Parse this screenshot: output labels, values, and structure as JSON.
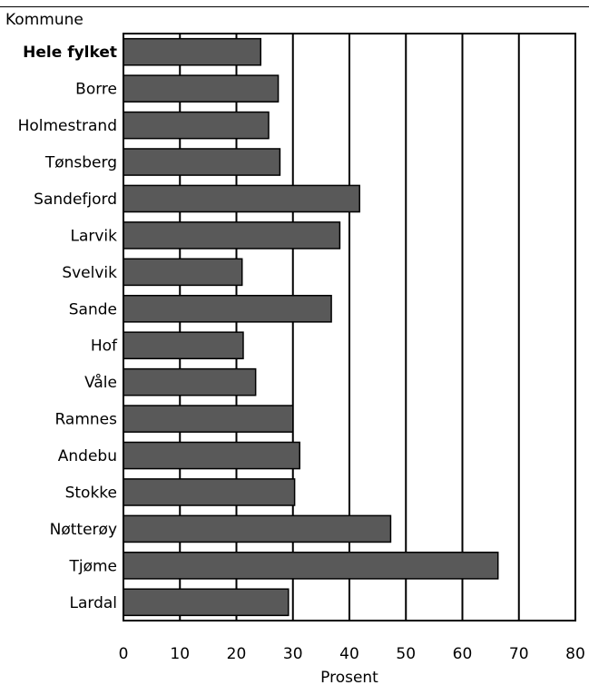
{
  "chart_data": {
    "type": "bar",
    "orientation": "horizontal",
    "title": "",
    "category_axis_label": "Kommune",
    "xlabel": "Prosent",
    "xlim": [
      0,
      80
    ],
    "xticks": [
      0,
      10,
      20,
      30,
      40,
      50,
      60,
      70,
      80
    ],
    "grid": true,
    "bar_color": "#595959",
    "categories": [
      "Hele fylket",
      "Borre",
      "Holmestrand",
      "Tønsberg",
      "Sandefjord",
      "Larvik",
      "Svelvik",
      "Sande",
      "Hof",
      "Våle",
      "Ramnes",
      "Andebu",
      "Stokke",
      "Nøtterøy",
      "Tjøme",
      "Lardal"
    ],
    "highlighted_category": "Hele fylket",
    "values": [
      24.3,
      27.4,
      25.7,
      27.7,
      41.8,
      38.3,
      21.0,
      36.8,
      21.2,
      23.4,
      30.0,
      31.2,
      30.3,
      47.3,
      66.3,
      29.2
    ]
  }
}
